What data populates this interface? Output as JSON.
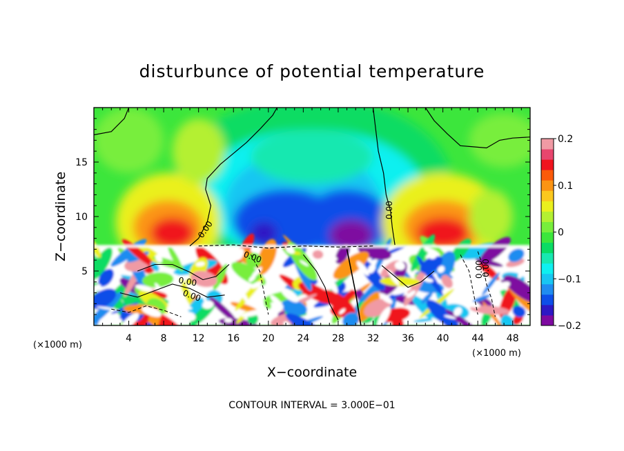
{
  "chart_data": {
    "type": "heatmap",
    "title": "disturbunce of potential temperature",
    "xlabel": "X−coordinate",
    "ylabel": "Z−coordinate",
    "x_unit_left": "(×1000 m)",
    "x_unit_right": "(×1000 m)",
    "xlim": [
      0,
      50
    ],
    "ylim": [
      0,
      20
    ],
    "x_ticks": [
      4,
      8,
      12,
      16,
      20,
      24,
      28,
      32,
      36,
      40,
      44,
      48
    ],
    "x_tick_labels": [
      "4",
      "8",
      "12",
      "16",
      "20",
      "24",
      "28",
      "32",
      "36",
      "40",
      "44",
      "48"
    ],
    "y_ticks": [
      5,
      10,
      15
    ],
    "y_tick_labels": [
      "5",
      "10",
      "15"
    ],
    "colorbar": {
      "range": [
        -0.2,
        0.2
      ],
      "ticks": [
        0.2,
        0.1,
        0,
        -0.1,
        -0.2
      ],
      "tick_labels": [
        "0.2",
        "0.1",
        "0",
        "−0.1",
        "−0.2"
      ],
      "colors": [
        "#7e0aa0",
        "#2d18c4",
        "#0d4ee8",
        "#1f8cf0",
        "#18c6f2",
        "#0ff0f0",
        "#18e8b0",
        "#0adc64",
        "#3ce63c",
        "#78ee3c",
        "#b4f032",
        "#eaf01e",
        "#fbc81e",
        "#fb9414",
        "#fb5a0a",
        "#f0141e",
        "#e8466e",
        "#f09aa4"
      ]
    },
    "contour_labels": [
      "0.00",
      "0.00",
      "0.00",
      "0.00",
      "0.00",
      "0.00",
      "0.00"
    ],
    "annotation": "CONTOUR INTERVAL = 3.000E−01",
    "legend": "colorbar-right"
  }
}
